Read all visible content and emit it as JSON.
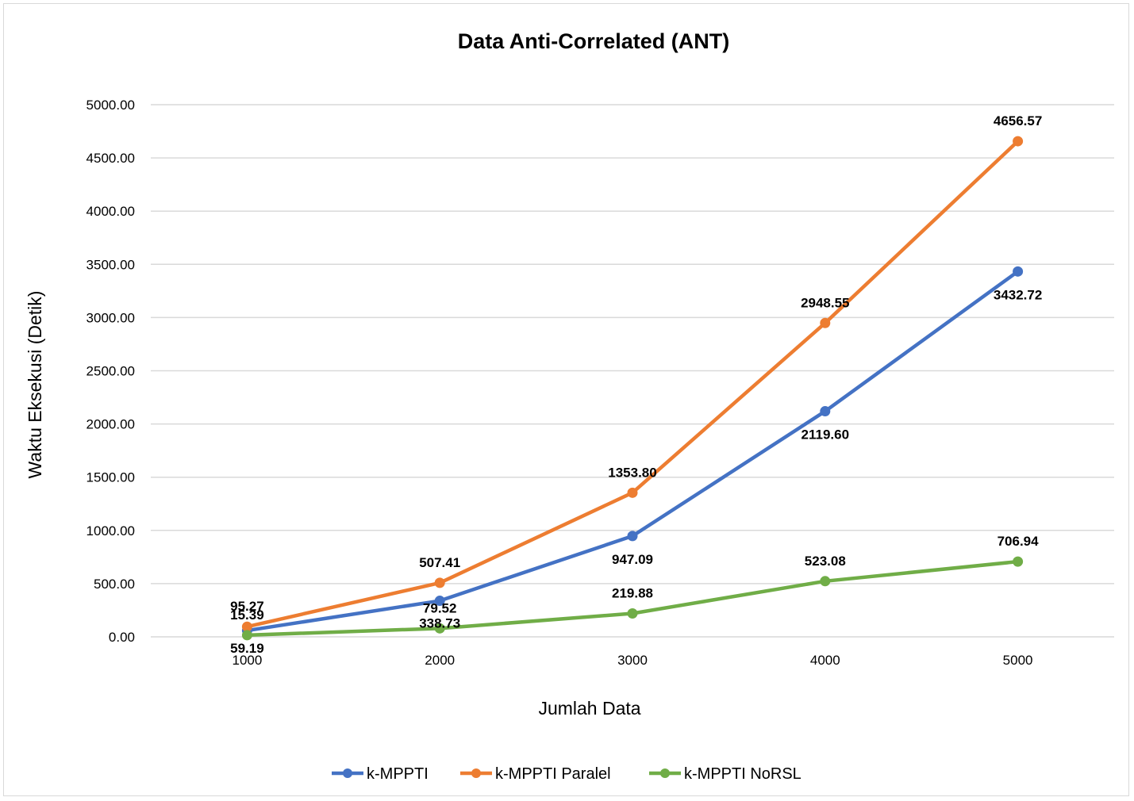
{
  "chart_data": {
    "type": "line",
    "title": "Data Anti-Correlated (ANT)",
    "xlabel": "Jumlah Data",
    "ylabel": "Waktu Eksekusi (Detik)",
    "x": [
      "1000",
      "2000",
      "3000",
      "4000",
      "5000"
    ],
    "ylim": [
      0,
      5000
    ],
    "yticks": [
      "0.00",
      "500.00",
      "1000.00",
      "1500.00",
      "2000.00",
      "2500.00",
      "3000.00",
      "3500.00",
      "4000.00",
      "4500.00",
      "5000.00"
    ],
    "grid": true,
    "legend_position": "bottom",
    "series": [
      {
        "name": "k-MPPTI",
        "color": "#4472C4",
        "values": [
          59.19,
          338.73,
          947.09,
          2119.6,
          3432.72
        ],
        "labels": [
          "59.19",
          "338.73",
          "947.09",
          "2119.60",
          "3432.72"
        ]
      },
      {
        "name": "k-MPPTI Paralel",
        "color": "#ED7D31",
        "values": [
          95.27,
          507.41,
          1353.8,
          2948.55,
          4656.57
        ],
        "labels": [
          "95.27",
          "507.41",
          "1353.80",
          "2948.55",
          "4656.57"
        ]
      },
      {
        "name": "k-MPPTI NoRSL",
        "color": "#70AD47",
        "values": [
          15.39,
          79.52,
          219.88,
          523.08,
          706.94
        ],
        "labels": [
          "15.39",
          "79.52",
          "219.88",
          "523.08",
          "706.94"
        ]
      }
    ]
  }
}
